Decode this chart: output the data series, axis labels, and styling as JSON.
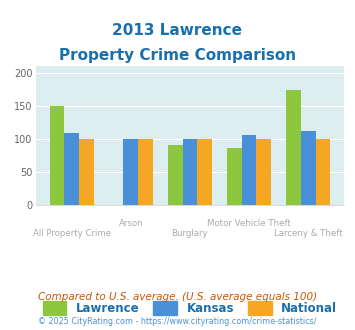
{
  "title_line1": "2013 Lawrence",
  "title_line2": "Property Crime Comparison",
  "categories": [
    "All Property Crime",
    "Arson",
    "Burglary",
    "Motor Vehicle Theft",
    "Larceny & Theft"
  ],
  "lawrence": [
    149,
    0,
    91,
    86,
    173
  ],
  "kansas": [
    108,
    100,
    100,
    105,
    112
  ],
  "national": [
    100,
    100,
    100,
    100,
    100
  ],
  "lawrence_color": "#8dc63f",
  "kansas_color": "#4a90d9",
  "national_color": "#f5a623",
  "plot_bg": "#ddeef0",
  "ylim": [
    0,
    210
  ],
  "yticks": [
    0,
    50,
    100,
    150,
    200
  ],
  "xlabel_color": "#aaaaaa",
  "title_color": "#1a6fad",
  "legend_labels": [
    "Lawrence",
    "Kansas",
    "National"
  ],
  "footnote": "Compared to U.S. average. (U.S. average equals 100)",
  "footnote2": "© 2025 CityRating.com - https://www.cityrating.com/crime-statistics/",
  "footnote_color": "#cc5500",
  "footnote2_color": "#4a90d9"
}
